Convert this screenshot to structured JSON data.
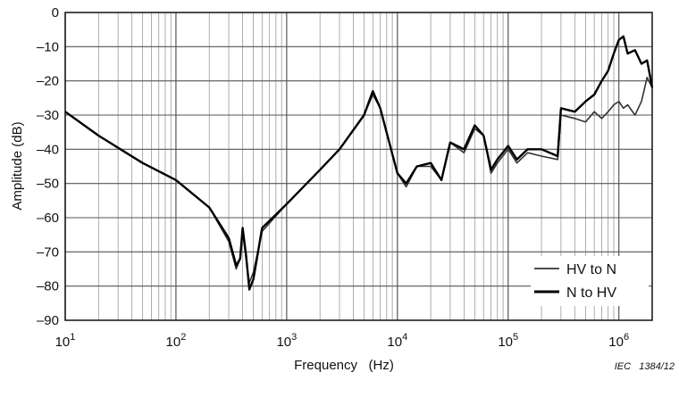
{
  "chart_data": {
    "type": "line",
    "title": "",
    "xlabel": "Frequency   (Hz)",
    "ylabel": "Amplitude   (dB)",
    "x_scale": "log",
    "xlim": [
      10,
      2000000
    ],
    "ylim": [
      -90,
      0
    ],
    "grid": true,
    "legend_position": "bottom-right",
    "y_ticks": [
      "0",
      "–10",
      "–20",
      "–30",
      "–40",
      "–50",
      "–60",
      "–70",
      "–80",
      "–90"
    ],
    "x_ticks": [
      {
        "base": "10",
        "exp": "1"
      },
      {
        "base": "10",
        "exp": "2"
      },
      {
        "base": "10",
        "exp": "3"
      },
      {
        "base": "10",
        "exp": "4"
      },
      {
        "base": "10",
        "exp": "5"
      },
      {
        "base": "10",
        "exp": "6"
      }
    ],
    "series": [
      {
        "name": "HV to N",
        "color": "#333333",
        "points": [
          [
            10,
            -29
          ],
          [
            20,
            -36
          ],
          [
            50,
            -44
          ],
          [
            100,
            -49
          ],
          [
            200,
            -57
          ],
          [
            300,
            -67
          ],
          [
            350,
            -75
          ],
          [
            380,
            -72
          ],
          [
            400,
            -64
          ],
          [
            430,
            -72
          ],
          [
            460,
            -79
          ],
          [
            500,
            -76
          ],
          [
            600,
            -64
          ],
          [
            1000,
            -56
          ],
          [
            2000,
            -46
          ],
          [
            3000,
            -40
          ],
          [
            5000,
            -30
          ],
          [
            6000,
            -24
          ],
          [
            7000,
            -28
          ],
          [
            10000,
            -47
          ],
          [
            12000,
            -51
          ],
          [
            15000,
            -45
          ],
          [
            20000,
            -45
          ],
          [
            25000,
            -49
          ],
          [
            30000,
            -38
          ],
          [
            40000,
            -41
          ],
          [
            50000,
            -34
          ],
          [
            60000,
            -36
          ],
          [
            70000,
            -47
          ],
          [
            80000,
            -44
          ],
          [
            100000,
            -40
          ],
          [
            120000,
            -44
          ],
          [
            150000,
            -41
          ],
          [
            200000,
            -42
          ],
          [
            280000,
            -43
          ],
          [
            300000,
            -30
          ],
          [
            400000,
            -31
          ],
          [
            500000,
            -32
          ],
          [
            600000,
            -29
          ],
          [
            700000,
            -31
          ],
          [
            800000,
            -29
          ],
          [
            900000,
            -27
          ],
          [
            1000000,
            -26
          ],
          [
            1100000,
            -28
          ],
          [
            1200000,
            -27
          ],
          [
            1400000,
            -30
          ],
          [
            1600000,
            -26
          ],
          [
            1800000,
            -19
          ],
          [
            2000000,
            -22
          ]
        ]
      },
      {
        "name": "N to HV",
        "color": "#000000",
        "points": [
          [
            10,
            -29
          ],
          [
            20,
            -36
          ],
          [
            50,
            -44
          ],
          [
            100,
            -49
          ],
          [
            200,
            -57
          ],
          [
            300,
            -66
          ],
          [
            350,
            -74
          ],
          [
            380,
            -72
          ],
          [
            400,
            -63
          ],
          [
            430,
            -71
          ],
          [
            460,
            -81
          ],
          [
            500,
            -78
          ],
          [
            600,
            -63
          ],
          [
            1000,
            -56
          ],
          [
            2000,
            -46
          ],
          [
            3000,
            -40
          ],
          [
            5000,
            -30
          ],
          [
            6000,
            -23
          ],
          [
            7000,
            -28
          ],
          [
            10000,
            -47
          ],
          [
            12000,
            -50
          ],
          [
            15000,
            -45
          ],
          [
            20000,
            -44
          ],
          [
            25000,
            -49
          ],
          [
            30000,
            -38
          ],
          [
            40000,
            -40
          ],
          [
            50000,
            -33
          ],
          [
            60000,
            -36
          ],
          [
            70000,
            -46
          ],
          [
            80000,
            -43
          ],
          [
            100000,
            -39
          ],
          [
            120000,
            -43
          ],
          [
            150000,
            -40
          ],
          [
            200000,
            -40
          ],
          [
            280000,
            -42
          ],
          [
            300000,
            -28
          ],
          [
            400000,
            -29
          ],
          [
            500000,
            -26
          ],
          [
            600000,
            -24
          ],
          [
            700000,
            -20
          ],
          [
            800000,
            -17
          ],
          [
            900000,
            -12
          ],
          [
            1000000,
            -8
          ],
          [
            1100000,
            -7
          ],
          [
            1200000,
            -12
          ],
          [
            1400000,
            -11
          ],
          [
            1600000,
            -15
          ],
          [
            1800000,
            -14
          ],
          [
            2000000,
            -22
          ]
        ]
      }
    ],
    "credit": "IEC   1384/12"
  }
}
